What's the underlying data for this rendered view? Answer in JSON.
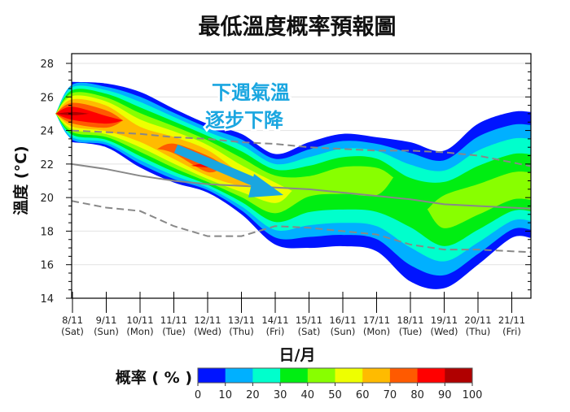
{
  "chart_data": {
    "type": "area",
    "title": "最低溫度概率預報圖",
    "xlabel": "日/月",
    "ylabel": "溫度 (°C)",
    "ylim": [
      14,
      28
    ],
    "yticks": [
      14,
      16,
      18,
      20,
      22,
      24,
      26,
      28
    ],
    "grid": true,
    "x": [
      {
        "date": "8/11",
        "day": "(Sat)",
        "holiday": false
      },
      {
        "date": "9/11",
        "day": "(Sun)",
        "holiday": true
      },
      {
        "date": "10/11",
        "day": "(Mon)",
        "holiday": false
      },
      {
        "date": "11/11",
        "day": "(Tue)",
        "holiday": false
      },
      {
        "date": "12/11",
        "day": "(Wed)",
        "holiday": false
      },
      {
        "date": "13/11",
        "day": "(Thu)",
        "holiday": false
      },
      {
        "date": "14/11",
        "day": "(Fri)",
        "holiday": false
      },
      {
        "date": "15/11",
        "day": "(Sat)",
        "holiday": false
      },
      {
        "date": "16/11",
        "day": "(Sun)",
        "holiday": true
      },
      {
        "date": "17/11",
        "day": "(Mon)",
        "holiday": false
      },
      {
        "date": "18/11",
        "day": "(Tue)",
        "holiday": false
      },
      {
        "date": "19/11",
        "day": "(Wed)",
        "holiday": false
      },
      {
        "date": "20/11",
        "day": "(Thu)",
        "holiday": false
      },
      {
        "date": "21/11",
        "day": "(Fri)",
        "holiday": false
      }
    ],
    "probability": {
      "most_likely_temp": [
        25.0,
        24.6,
        23.7,
        22.9,
        21.9,
        21.0,
        20.4,
        20.8,
        21.2,
        21.2,
        20.0,
        19.3,
        19.8,
        20.5
      ],
      "peak_probability": [
        92,
        85,
        68,
        75,
        82,
        65,
        58,
        45,
        47,
        47,
        40,
        47,
        46,
        46
      ],
      "min_temp": [
        23.3,
        23.0,
        21.8,
        20.9,
        20.3,
        19.0,
        17.2,
        17.0,
        17.1,
        16.8,
        15.0,
        14.6,
        16.0,
        17.6
      ],
      "max_temp": [
        26.9,
        26.8,
        26.3,
        25.3,
        24.4,
        23.8,
        22.6,
        23.3,
        23.8,
        23.6,
        23.3,
        22.8,
        24.4,
        25.1
      ]
    },
    "series": [
      {
        "style": "solid",
        "color": "#888888",
        "values": [
          22.0,
          21.7,
          21.3,
          21.0,
          20.8,
          20.7,
          20.6,
          20.5,
          20.3,
          20.1,
          19.9,
          19.6,
          19.5,
          19.4
        ]
      },
      {
        "style": "dashed",
        "color": "#888888",
        "values": [
          24.0,
          23.9,
          23.8,
          23.6,
          23.5,
          23.3,
          23.2,
          23.0,
          22.9,
          22.8,
          22.8,
          22.7,
          22.5,
          22.1
        ]
      },
      {
        "style": "dashed",
        "color": "#888888",
        "values": [
          19.8,
          19.4,
          19.2,
          18.3,
          17.7,
          17.7,
          18.3,
          18.2,
          18.0,
          17.8,
          17.2,
          16.9,
          16.9,
          16.8
        ]
      }
    ],
    "colorbar": {
      "label": "概率 ( % )",
      "ticks": [
        0,
        10,
        20,
        30,
        40,
        50,
        60,
        70,
        80,
        90,
        100
      ],
      "colors": [
        "#0014ff",
        "#00b0ff",
        "#00ffcc",
        "#00ee12",
        "#88ff00",
        "#eeff00",
        "#ffbb00",
        "#ff5a00",
        "#ff0000",
        "#b00000"
      ]
    },
    "annotation": {
      "line1": "下週氣溫",
      "line2": "逐步下降",
      "color": "#1aa6e0"
    }
  }
}
